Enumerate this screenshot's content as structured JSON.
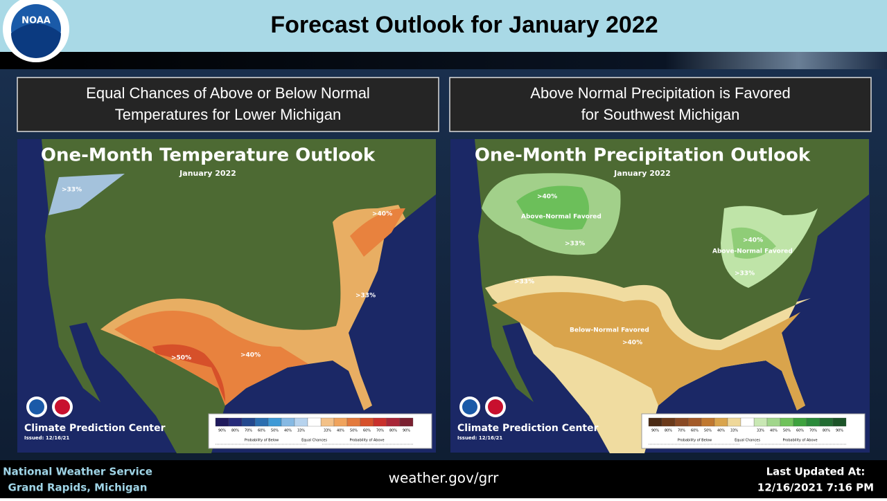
{
  "header": {
    "title": "Forecast Outlook for January 2022",
    "logo": "NOAA"
  },
  "panels": [
    {
      "caption": [
        "Equal Chances of Above or Below Normal",
        "Temperatures for Lower Michigan"
      ],
      "map": {
        "title": "One-Month Temperature Outlook",
        "subtitle": "January 2022",
        "labels": [
          ">33%",
          ">40%",
          ">33%",
          ">40%",
          ">50%"
        ],
        "org": "Climate Prediction Center",
        "issued": "Issued: 12/16/21",
        "legend": {
          "ticks": [
            "90%",
            "80%",
            "70%",
            "60%",
            "50%",
            "40%",
            "33%",
            "33%",
            "40%",
            "50%",
            "60%",
            "70%",
            "80%",
            "90%"
          ],
          "below": "Probability of Below",
          "equal": "Equal Chances",
          "above": "Probability of Above"
        }
      }
    },
    {
      "caption": [
        "Above Normal Precipitation is Favored",
        "for Southwest Michigan"
      ],
      "map": {
        "title": "One-Month Precipitation Outlook",
        "subtitle": "January 2022",
        "labels": [
          ">40%",
          "Above-Normal Favored",
          ">33%",
          ">40%",
          "Above-Normal Favored",
          ">33%",
          ">33%",
          "Below-Normal Favored",
          ">40%"
        ],
        "org": "Climate Prediction Center",
        "issued": "Issued: 12/16/21",
        "legend": {
          "ticks": [
            "90%",
            "80%",
            "70%",
            "60%",
            "50%",
            "40%",
            "33%",
            "33%",
            "40%",
            "50%",
            "60%",
            "70%",
            "80%",
            "90%"
          ],
          "below": "Probability of Below",
          "equal": "Equal Chances",
          "above": "Probability of Above"
        }
      }
    }
  ],
  "footer": {
    "left": [
      "National Weather Service",
      "Grand Rapids, Michigan"
    ],
    "center": "weather.gov/grr",
    "right": [
      "Last Updated At:",
      "12/16/2021 7:16 PM"
    ]
  }
}
